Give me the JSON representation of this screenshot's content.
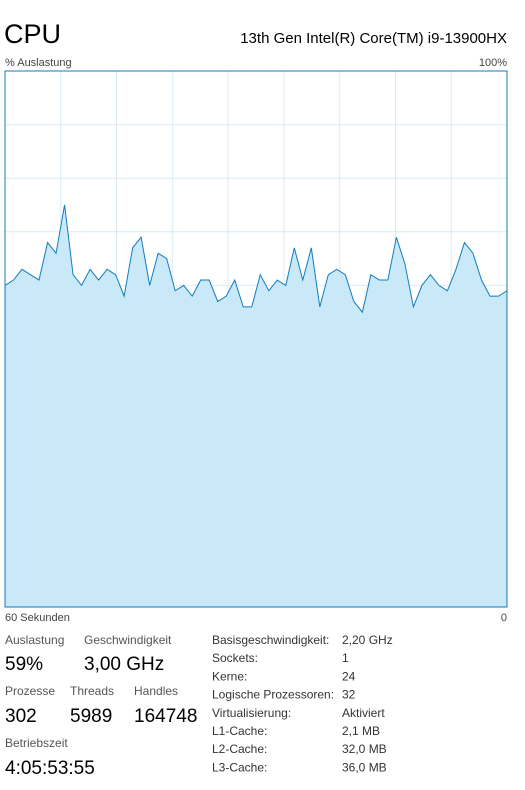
{
  "header": {
    "title": "CPU",
    "processor": "13th Gen Intel(R) Core(TM) i9-13900HX"
  },
  "chart_data": {
    "type": "area",
    "ylabel": "% Auslastung",
    "ymax_label": "100%",
    "x_start_label": "60 Sekunden",
    "x_end_label": "0",
    "ylim": [
      0,
      100
    ],
    "color": "#117dbb",
    "fill": "#c9e8f8",
    "grid": true,
    "values": [
      60,
      61,
      63,
      62,
      61,
      68,
      66,
      75,
      62,
      60,
      63,
      61,
      63,
      62,
      58,
      67,
      69,
      60,
      66,
      65,
      59,
      60,
      58,
      61,
      61,
      57,
      58,
      61,
      56,
      56,
      62,
      59,
      61,
      60,
      67,
      61,
      67,
      56,
      62,
      63,
      62,
      57,
      55,
      62,
      61,
      61,
      69,
      64,
      56,
      60,
      62,
      60,
      59,
      63,
      68,
      66,
      61,
      58,
      58,
      59
    ]
  },
  "stats": {
    "utilization": {
      "label": "Auslastung",
      "value": "59%"
    },
    "speed": {
      "label": "Geschwindigkeit",
      "value": "3,00 GHz"
    },
    "processes": {
      "label": "Prozesse",
      "value": "302"
    },
    "threads": {
      "label": "Threads",
      "value": "5989"
    },
    "handles": {
      "label": "Handles",
      "value": "164748"
    },
    "uptime": {
      "label": "Betriebszeit",
      "value": "4:05:53:55"
    }
  },
  "details": [
    [
      "Basisgeschwindigkeit:",
      "2,20 GHz"
    ],
    [
      "Sockets:",
      "1"
    ],
    [
      "Kerne:",
      "24"
    ],
    [
      "Logische Prozessoren:",
      "32"
    ],
    [
      "Virtualisierung:",
      "Aktiviert"
    ],
    [
      "L1-Cache:",
      "2,1 MB"
    ],
    [
      "L2-Cache:",
      "32,0 MB"
    ],
    [
      "L3-Cache:",
      "36,0 MB"
    ]
  ]
}
